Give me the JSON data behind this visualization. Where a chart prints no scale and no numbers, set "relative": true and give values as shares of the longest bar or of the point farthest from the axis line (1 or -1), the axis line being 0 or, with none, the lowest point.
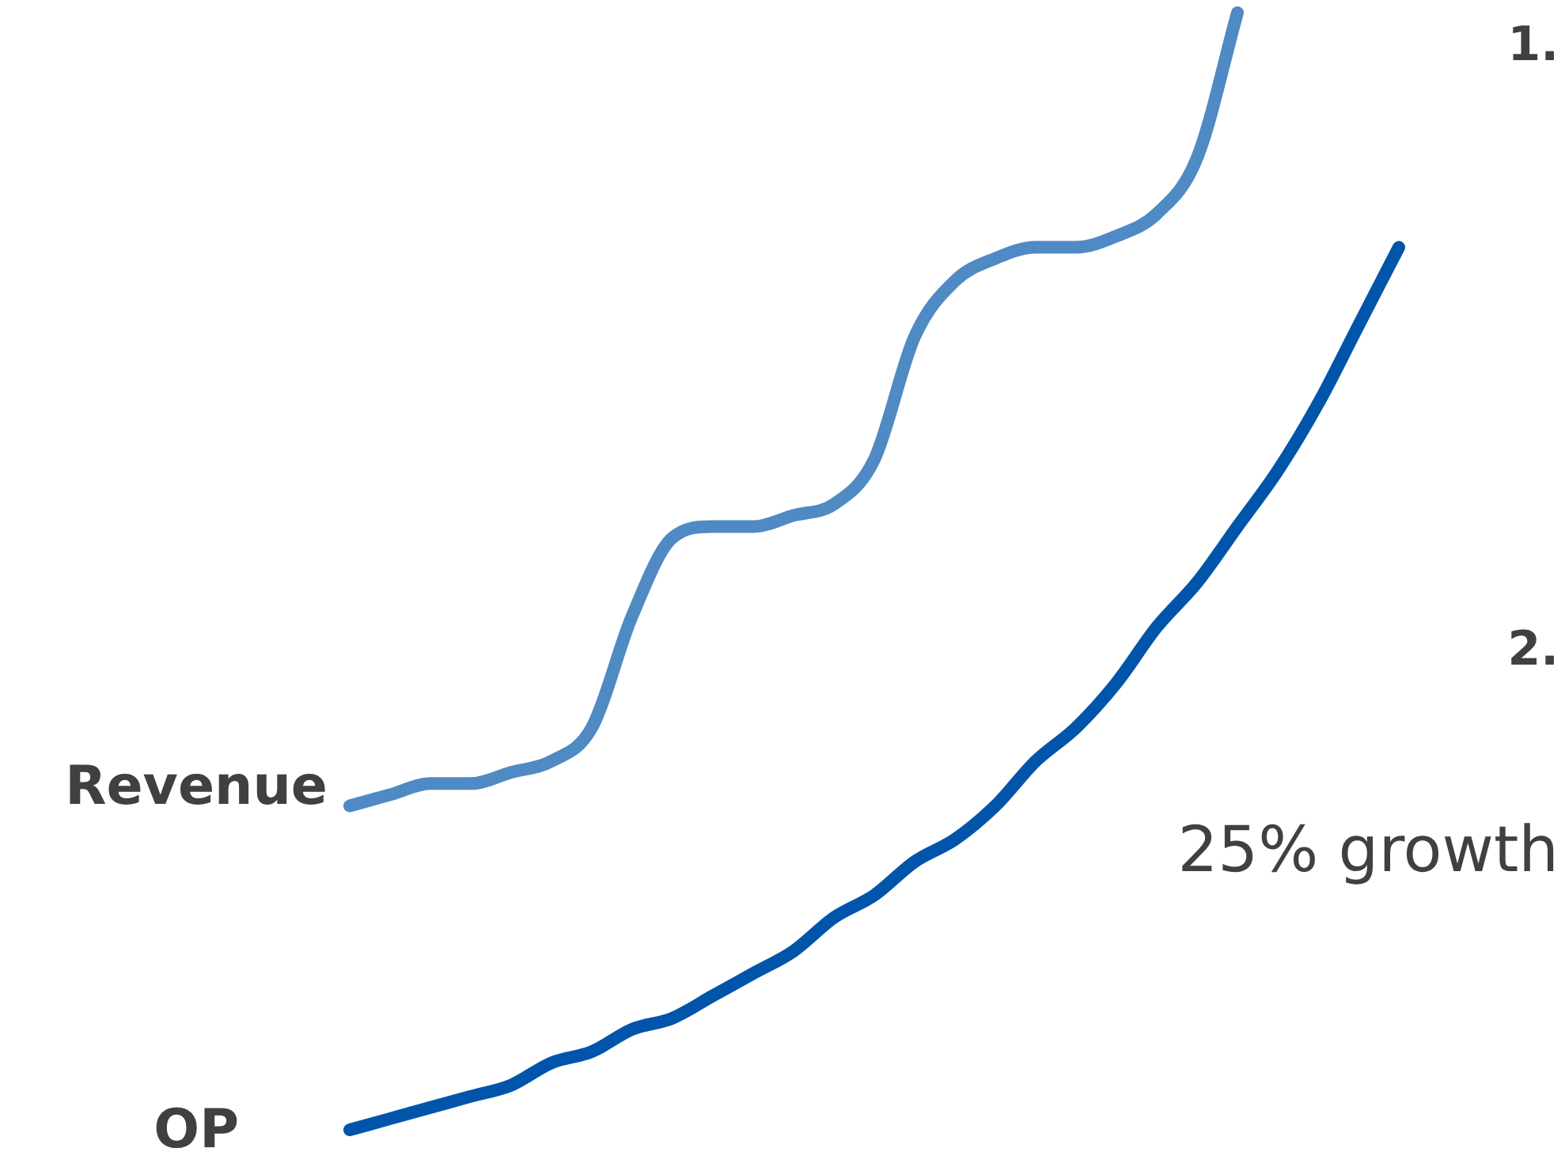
{
  "chart_data": {
    "type": "line",
    "relative": true,
    "legend": false,
    "marker": "none",
    "line_style": "solid",
    "categories": [
      null,
      null,
      null,
      null,
      null,
      null,
      null,
      null,
      null,
      null,
      null,
      null,
      null,
      null,
      null,
      null,
      null,
      null,
      null,
      null,
      null,
      null,
      null,
      null,
      null,
      null,
      null
    ],
    "series": [
      {
        "name": "Revenue",
        "color": "#4f8ac4",
        "values": [
          0.29,
          0.3,
          0.31,
          0.31,
          0.32,
          0.33,
          0.36,
          0.46,
          0.53,
          0.54,
          0.54,
          0.55,
          0.56,
          0.6,
          0.71,
          0.76,
          0.78,
          0.79,
          0.79,
          0.8,
          0.82,
          0.87,
          1,
          null,
          null,
          null,
          null
        ]
      },
      {
        "name": "OP",
        "color": "#0055aa",
        "values": [
          0,
          0.01,
          0.02,
          0.03,
          0.04,
          0.06,
          0.07,
          0.09,
          0.1,
          0.12,
          0.14,
          0.16,
          0.19,
          0.21,
          0.24,
          0.26,
          0.29,
          0.33,
          0.36,
          0.4,
          0.45,
          0.49,
          0.54,
          0.59,
          0.65,
          0.72,
          0.79
        ]
      }
    ],
    "annotations": [
      "1.",
      "2.",
      "25% growth"
    ]
  }
}
